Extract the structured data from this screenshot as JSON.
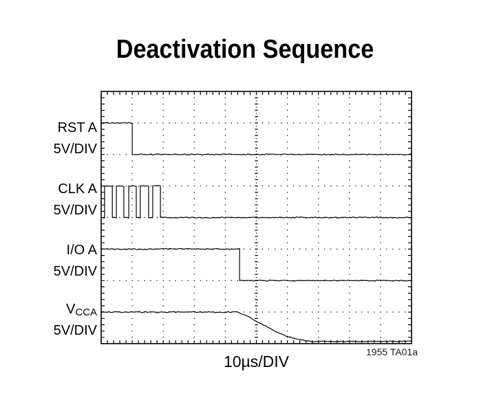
{
  "page": {
    "title": "Deactivation Sequence",
    "timebase_label": "10µs/DIV",
    "figure_ref": "1955 TA01a"
  },
  "channels": [
    {
      "label": "RST A",
      "sub": "",
      "scale": "5V/DIV"
    },
    {
      "label": "CLK A",
      "sub": "",
      "scale": "5V/DIV"
    },
    {
      "label": "I/O A",
      "sub": "",
      "scale": "5V/DIV"
    },
    {
      "label": "V",
      "sub": "CCA",
      "scale": "5V/DIV"
    }
  ],
  "colors": {
    "trace": "#000000",
    "graticule": "#000000",
    "background": "#ffffff"
  },
  "chart_data": {
    "type": "line",
    "title": "Deactivation Sequence",
    "xlabel": "10µs/DIV",
    "time_per_div_us": 10,
    "volts_per_div": 5,
    "grid": {
      "x_divisions": 10,
      "y_divisions": 8,
      "style": "oscilloscope-dotted"
    },
    "annotation": "1955 TA01a",
    "series": [
      {
        "name": "RST A",
        "scale": "5V/DIV",
        "points": [
          [
            0,
            1
          ],
          [
            1.0,
            1
          ],
          [
            1.0,
            2
          ],
          [
            10,
            2
          ]
        ]
      },
      {
        "name": "CLK A",
        "scale": "5V/DIV",
        "points": [
          [
            0,
            4
          ],
          [
            0.11,
            4
          ],
          [
            0.11,
            3
          ],
          [
            0.36,
            3
          ],
          [
            0.36,
            4
          ],
          [
            0.49,
            4
          ],
          [
            0.49,
            3
          ],
          [
            0.73,
            3
          ],
          [
            0.73,
            4
          ],
          [
            0.89,
            4
          ],
          [
            0.89,
            3
          ],
          [
            1.13,
            3
          ],
          [
            1.13,
            4
          ],
          [
            1.26,
            4
          ],
          [
            1.26,
            3
          ],
          [
            1.53,
            3
          ],
          [
            1.53,
            4
          ],
          [
            1.66,
            4
          ],
          [
            1.66,
            3
          ],
          [
            1.91,
            3
          ],
          [
            1.91,
            4
          ],
          [
            10,
            4
          ]
        ]
      },
      {
        "name": "I/O A",
        "scale": "5V/DIV",
        "points": [
          [
            0,
            5
          ],
          [
            4.46,
            5
          ],
          [
            4.46,
            6
          ],
          [
            10,
            6
          ]
        ]
      },
      {
        "name": "VCCA",
        "scale": "5V/DIV",
        "points": [
          [
            0,
            7
          ],
          [
            4.39,
            7
          ],
          [
            4.72,
            7.13
          ],
          [
            5.01,
            7.3
          ],
          [
            5.32,
            7.45
          ],
          [
            5.61,
            7.61
          ],
          [
            5.9,
            7.74
          ],
          [
            6.21,
            7.83
          ],
          [
            6.5,
            7.89
          ],
          [
            6.79,
            7.93
          ],
          [
            10,
            7.93
          ]
        ]
      }
    ]
  }
}
